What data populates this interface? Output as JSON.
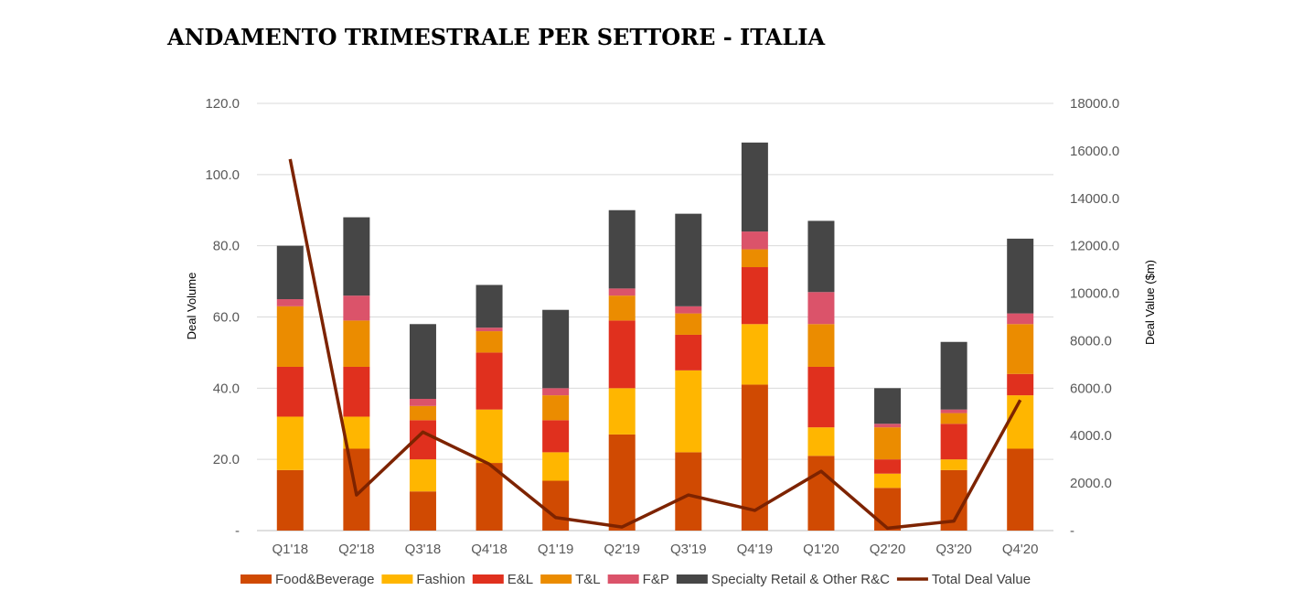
{
  "page": {
    "title": "ANDAMENTO TRIMESTRALE PER SETTORE - ITALIA"
  },
  "chart_data": {
    "type": "bar",
    "stacked": true,
    "title": "ANDAMENTO TRIMESTRALE PER SETTORE - ITALIA",
    "categories": [
      "Q1'18",
      "Q2'18",
      "Q3'18",
      "Q4'18",
      "Q1'19",
      "Q2'19",
      "Q3'19",
      "Q4'19",
      "Q1'20",
      "Q2'20",
      "Q3'20",
      "Q4'20"
    ],
    "ylabel": "Deal Volume",
    "y2label": "Deal Value ($m)",
    "ylim": [
      0,
      120
    ],
    "y2lim": [
      0,
      18000
    ],
    "yticks": [
      "-",
      "20.0",
      "40.0",
      "60.0",
      "80.0",
      "100.0",
      "120.0"
    ],
    "y2ticks": [
      "-",
      "2000.0",
      "4000.0",
      "6000.0",
      "8000.0",
      "10000.0",
      "12000.0",
      "14000.0",
      "16000.0",
      "18000.0"
    ],
    "grid": true,
    "legend_position": "bottom",
    "series": [
      {
        "name": "Food&Beverage",
        "color": "#D04A02",
        "values": [
          17,
          23,
          11,
          19,
          14,
          27,
          22,
          41,
          21,
          12,
          17,
          23
        ]
      },
      {
        "name": "Fashion",
        "color": "#FFB600",
        "values": [
          15,
          9,
          9,
          15,
          8,
          13,
          23,
          17,
          8,
          4,
          3,
          15
        ]
      },
      {
        "name": "E&L",
        "color": "#E0301E",
        "values": [
          14,
          14,
          11,
          16,
          9,
          19,
          10,
          16,
          17,
          4,
          10,
          6
        ]
      },
      {
        "name": "T&L",
        "color": "#EB8C00",
        "values": [
          17,
          13,
          4,
          6,
          7,
          7,
          6,
          5,
          12,
          9,
          3,
          14
        ]
      },
      {
        "name": "F&P",
        "color": "#DB536A",
        "values": [
          2,
          7,
          2,
          1,
          2,
          2,
          2,
          5,
          9,
          1,
          1,
          3
        ]
      },
      {
        "name": "Specialty Retail & Other R&C",
        "color": "#464646",
        "values": [
          15,
          22,
          21,
          12,
          22,
          22,
          26,
          25,
          20,
          10,
          19,
          21
        ]
      }
    ],
    "line_series": {
      "name": "Total Deal Value",
      "color": "#7D2300",
      "axis": "secondary",
      "values": [
        15650,
        1500,
        4150,
        2800,
        550,
        150,
        1500,
        850,
        2500,
        100,
        400,
        5500
      ]
    }
  }
}
